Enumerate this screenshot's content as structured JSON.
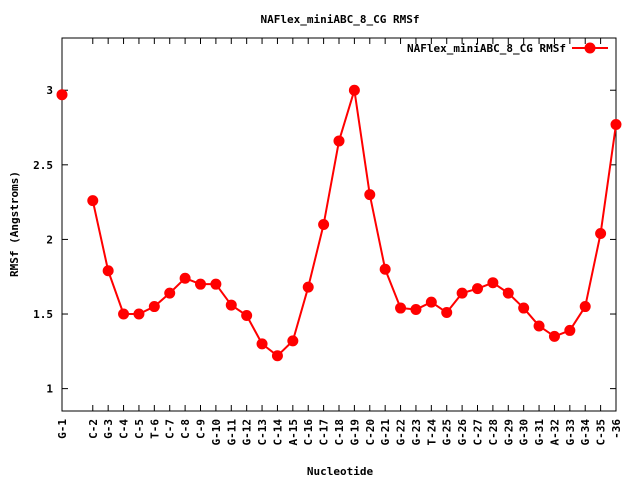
{
  "chart_data": {
    "type": "line",
    "title": "NAFlex_miniABC_8_CG RMSf",
    "xlabel": "Nucleotide",
    "ylabel": "RMSf (Angstroms)",
    "ylim": [
      0.85,
      3.35
    ],
    "yticks": [
      "1",
      "1.5",
      "2",
      "2.5",
      "3"
    ],
    "ytick_values": [
      1,
      1.5,
      2,
      2.5,
      3
    ],
    "grid": false,
    "legend_position": "top-right",
    "series": [
      {
        "name": "NAFlex_miniABC_8_CG RMSf",
        "color": "#ff0000",
        "marker": "circle"
      }
    ],
    "categories": [
      "G-1",
      "C-2",
      "G-3",
      "C-4",
      "C-5",
      "T-6",
      "C-7",
      "C-8",
      "C-9",
      "G-10",
      "G-11",
      "G-12",
      "C-13",
      "C-14",
      "A-15",
      "C-16",
      "C-17",
      "C-18",
      "G-19",
      "C-20",
      "G-21",
      "G-22",
      "G-23",
      "T-24",
      "G-25",
      "G-26",
      "C-27",
      "C-28",
      "G-29",
      "G-30",
      "G-31",
      "A-32",
      "G-33",
      "G-34",
      "C-35",
      "-36"
    ],
    "positions": [
      1,
      3,
      4,
      5,
      6,
      7,
      8,
      9,
      10,
      11,
      12,
      13,
      14,
      15,
      16,
      17,
      18,
      19,
      20,
      21,
      22,
      23,
      24,
      25,
      26,
      27,
      28,
      29,
      30,
      31,
      32,
      33,
      34,
      35,
      36,
      37
    ],
    "values": [
      2.97,
      2.26,
      1.79,
      1.5,
      1.5,
      1.55,
      1.64,
      1.74,
      1.7,
      1.7,
      1.56,
      1.49,
      1.3,
      1.22,
      1.32,
      1.68,
      2.1,
      2.66,
      3.0,
      2.3,
      1.8,
      1.54,
      1.53,
      1.58,
      1.51,
      1.64,
      1.67,
      1.71,
      1.64,
      1.54,
      1.42,
      1.35,
      1.39,
      1.55,
      2.04,
      2.77
    ],
    "segments": [
      [
        0,
        0
      ],
      [
        1,
        35
      ]
    ]
  }
}
